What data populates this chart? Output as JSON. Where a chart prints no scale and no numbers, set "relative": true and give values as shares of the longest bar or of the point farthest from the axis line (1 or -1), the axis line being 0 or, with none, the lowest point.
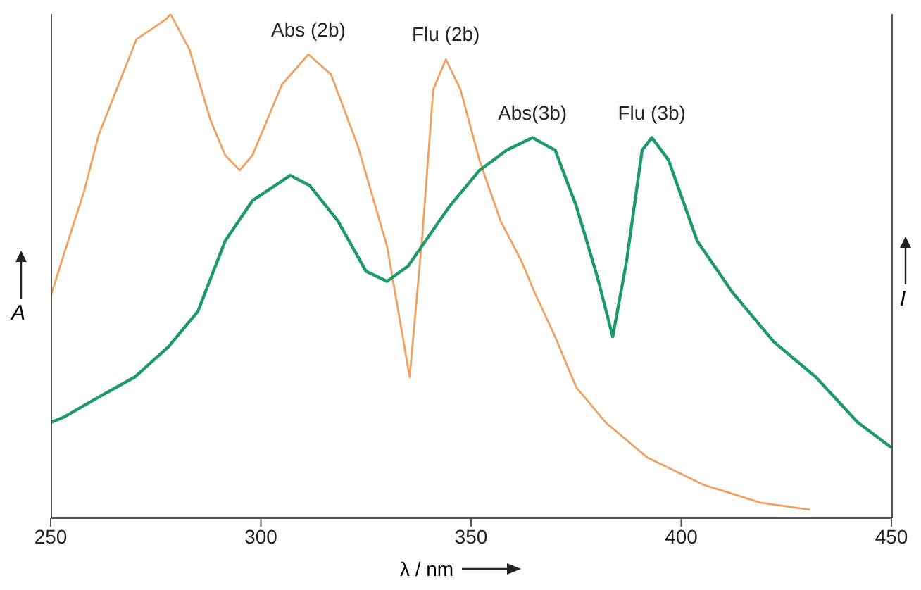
{
  "chart_data": {
    "type": "line",
    "relative": true,
    "xlabel": "λ / nm",
    "ylabel": "A",
    "y2label": "I",
    "xlim": [
      250,
      450
    ],
    "xticks": [
      250,
      300,
      350,
      400,
      450
    ],
    "marker": "none",
    "line_style": "solid",
    "series": [
      {
        "color": "#f0a060",
        "x": [
          250,
          253,
          258,
          261.4,
          270.4,
          277.5,
          278.5,
          283,
          288,
          291.5,
          295,
          298,
          305,
          311.3,
          316.7,
          323,
          330,
          335.4,
          338.4,
          341,
          344,
          347.5,
          352,
          357,
          362,
          365,
          370,
          375,
          382,
          392,
          405.4,
          418.8,
          430.6
        ],
        "values": [
          0.44,
          0.52,
          0.65,
          0.76,
          0.95,
          0.99,
          1,
          0.93,
          0.79,
          0.72,
          0.69,
          0.72,
          0.86,
          0.92,
          0.88,
          0.74,
          0.54,
          0.28,
          0.56,
          0.85,
          0.91,
          0.85,
          0.71,
          0.59,
          0.51,
          0.45,
          0.36,
          0.26,
          0.19,
          0.12,
          0.066,
          0.031,
          0.017
        ]
      },
      {
        "color": "#1e9a6a",
        "x": [
          250,
          253,
          261.4,
          270,
          278,
          285,
          291.5,
          298,
          307,
          311.6,
          318.3,
          325,
          330,
          335,
          345,
          352,
          358.5,
          364.6,
          370,
          375,
          380,
          383.7,
          387,
          390.7,
          393,
          397,
          403.8,
          412,
          422,
          432,
          442,
          450
        ],
        "values": [
          0.19,
          0.2,
          0.24,
          0.28,
          0.34,
          0.41,
          0.55,
          0.63,
          0.68,
          0.66,
          0.59,
          0.49,
          0.47,
          0.5,
          0.62,
          0.69,
          0.73,
          0.755,
          0.73,
          0.62,
          0.48,
          0.36,
          0.51,
          0.73,
          0.755,
          0.71,
          0.55,
          0.45,
          0.35,
          0.28,
          0.19,
          0.14
        ]
      }
    ],
    "annotations": [
      {
        "text": "Abs (2b)",
        "x": 311.3,
        "y": 0.92
      },
      {
        "text": "Flu (2b)",
        "x": 344,
        "y": 0.91
      },
      {
        "text": "Abs(3b)",
        "x": 364.6,
        "y": 0.755
      },
      {
        "text": "Flu (3b)",
        "x": 393,
        "y": 0.755
      }
    ]
  }
}
